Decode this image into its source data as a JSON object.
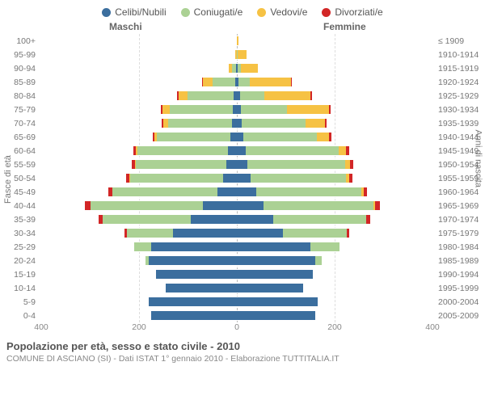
{
  "legend": [
    {
      "label": "Celibi/Nubili",
      "color": "#3b6e9e"
    },
    {
      "label": "Coniugati/e",
      "color": "#abd194"
    },
    {
      "label": "Vedovi/e",
      "color": "#f6c244"
    },
    {
      "label": "Divorziati/e",
      "color": "#d22626"
    }
  ],
  "headers": {
    "male": "Maschi",
    "female": "Femmine"
  },
  "axis_left_title": "Fasce di età",
  "axis_right_title": "Anni di nascita",
  "title": "Popolazione per età, sesso e stato civile - 2010",
  "subtitle": "COMUNE DI ASCIANO (SI) - Dati ISTAT 1° gennaio 2010 - Elaborazione TUTTITALIA.IT",
  "x_max": 400,
  "x_ticks": [
    400,
    200,
    0,
    200,
    400
  ],
  "fontsize_axis": 10.5,
  "fontsize_legend": 12,
  "background_color": "#ffffff",
  "grid_color": "#dddddd",
  "rows": [
    {
      "age": "100+",
      "cohort": "≤ 1909",
      "m": [
        0,
        0,
        0,
        0
      ],
      "f": [
        0,
        0,
        3,
        0
      ]
    },
    {
      "age": "95-99",
      "cohort": "1910-1914",
      "m": [
        0,
        0,
        4,
        0
      ],
      "f": [
        0,
        2,
        18,
        0
      ]
    },
    {
      "age": "90-94",
      "cohort": "1915-1919",
      "m": [
        2,
        8,
        6,
        0
      ],
      "f": [
        2,
        6,
        35,
        0
      ]
    },
    {
      "age": "85-89",
      "cohort": "1920-1924",
      "m": [
        4,
        45,
        20,
        2
      ],
      "f": [
        4,
        22,
        85,
        2
      ]
    },
    {
      "age": "80-84",
      "cohort": "1925-1929",
      "m": [
        6,
        95,
        18,
        3
      ],
      "f": [
        6,
        50,
        95,
        3
      ]
    },
    {
      "age": "75-79",
      "cohort": "1930-1934",
      "m": [
        8,
        130,
        14,
        3
      ],
      "f": [
        8,
        95,
        85,
        3
      ]
    },
    {
      "age": "70-74",
      "cohort": "1935-1939",
      "m": [
        10,
        130,
        10,
        3
      ],
      "f": [
        10,
        130,
        40,
        3
      ]
    },
    {
      "age": "65-69",
      "cohort": "1940-1944",
      "m": [
        14,
        150,
        4,
        4
      ],
      "f": [
        14,
        150,
        25,
        4
      ]
    },
    {
      "age": "60-64",
      "cohort": "1945-1949",
      "m": [
        18,
        185,
        3,
        6
      ],
      "f": [
        18,
        190,
        15,
        6
      ]
    },
    {
      "age": "55-59",
      "cohort": "1950-1954",
      "m": [
        22,
        185,
        2,
        6
      ],
      "f": [
        22,
        200,
        10,
        6
      ]
    },
    {
      "age": "50-54",
      "cohort": "1955-1959",
      "m": [
        28,
        190,
        2,
        7
      ],
      "f": [
        28,
        195,
        6,
        7
      ]
    },
    {
      "age": "45-49",
      "cohort": "1960-1964",
      "m": [
        40,
        215,
        0,
        8
      ],
      "f": [
        40,
        215,
        4,
        8
      ]
    },
    {
      "age": "40-44",
      "cohort": "1965-1969",
      "m": [
        70,
        230,
        0,
        10
      ],
      "f": [
        55,
        225,
        2,
        10
      ]
    },
    {
      "age": "35-39",
      "cohort": "1970-1974",
      "m": [
        95,
        180,
        0,
        8
      ],
      "f": [
        75,
        190,
        0,
        8
      ]
    },
    {
      "age": "30-34",
      "cohort": "1975-1979",
      "m": [
        130,
        95,
        0,
        4
      ],
      "f": [
        95,
        130,
        0,
        4
      ]
    },
    {
      "age": "25-29",
      "cohort": "1980-1984",
      "m": [
        175,
        35,
        0,
        0
      ],
      "f": [
        150,
        60,
        0,
        0
      ]
    },
    {
      "age": "20-24",
      "cohort": "1985-1989",
      "m": [
        180,
        6,
        0,
        0
      ],
      "f": [
        160,
        14,
        0,
        0
      ]
    },
    {
      "age": "15-19",
      "cohort": "1990-1994",
      "m": [
        165,
        0,
        0,
        0
      ],
      "f": [
        155,
        0,
        0,
        0
      ]
    },
    {
      "age": "10-14",
      "cohort": "1995-1999",
      "m": [
        145,
        0,
        0,
        0
      ],
      "f": [
        135,
        0,
        0,
        0
      ]
    },
    {
      "age": "5-9",
      "cohort": "2000-2004",
      "m": [
        180,
        0,
        0,
        0
      ],
      "f": [
        165,
        0,
        0,
        0
      ]
    },
    {
      "age": "0-4",
      "cohort": "2005-2009",
      "m": [
        175,
        0,
        0,
        0
      ],
      "f": [
        160,
        0,
        0,
        0
      ]
    }
  ]
}
